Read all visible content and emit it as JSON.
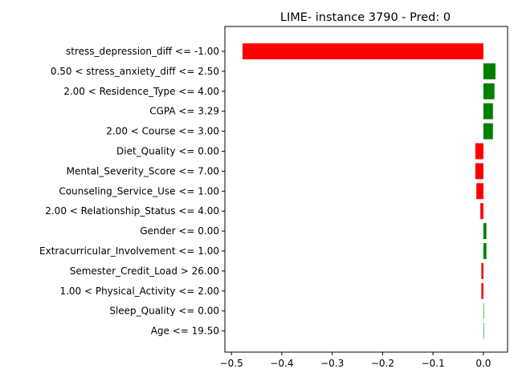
{
  "chart_data": {
    "type": "bar",
    "orientation": "horizontal",
    "title": "LIME- instance 3790 - Pred: 0",
    "xlabel": "",
    "ylabel": "",
    "xlim": [
      -0.513,
      0.048
    ],
    "xticks": [
      -0.5,
      -0.4,
      -0.3,
      -0.2,
      -0.1,
      0.0
    ],
    "xtick_labels": [
      "−0.5",
      "−0.4",
      "−0.3",
      "−0.2",
      "−0.1",
      "0.0"
    ],
    "grid": false,
    "legend": "none",
    "colors": {
      "positive": "#008000",
      "negative": "#ff0000"
    },
    "categories": [
      "stress_depression_diff <= -1.00",
      "0.50 < stress_anxiety_diff <= 2.50",
      "2.00 < Residence_Type <= 4.00",
      "CGPA <= 3.29",
      "2.00 < Course <= 3.00",
      "Diet_Quality <= 0.00",
      "Mental_Severity_Score <= 7.00",
      "Counseling_Service_Use <= 1.00",
      "2.00 < Relationship_Status <= 4.00",
      "Gender <= 0.00",
      "Extracurricular_Involvement <= 1.00",
      "Semester_Credit_Load > 26.00",
      "1.00 < Physical_Activity <= 2.00",
      "Sleep_Quality <= 0.00",
      "Age <= 19.50"
    ],
    "values": [
      -0.478,
      0.024,
      0.022,
      0.019,
      0.019,
      -0.016,
      -0.016,
      -0.014,
      -0.006,
      0.006,
      0.006,
      -0.004,
      -0.004,
      0.0,
      0.001
    ]
  }
}
